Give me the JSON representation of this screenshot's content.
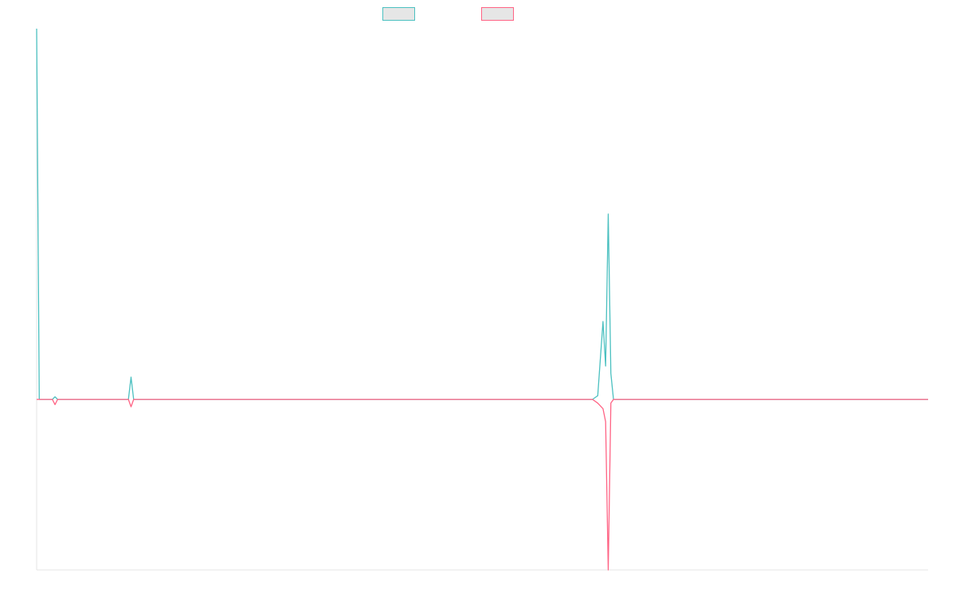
{
  "chart_data": {
    "type": "line",
    "title": "",
    "xlabel": "",
    "ylabel": "",
    "grid": false,
    "legend_position": "top-center",
    "x": [
      0,
      0.3,
      0.6,
      0.9,
      1.2,
      1.5,
      1.8,
      2.1,
      2.4,
      2.7,
      3.0,
      10.5,
      10.8,
      11.1,
      11.4,
      11.7,
      63.6,
      64.2,
      64.8,
      65.1,
      65.4,
      65.7,
      66.0,
      66.6,
      67.5,
      102
    ],
    "ylim": [
      -0.46,
      1.0
    ],
    "series": [
      {
        "name": "",
        "color": "#4bc0c0",
        "values": [
          1.0,
          0,
          0,
          0,
          0,
          0,
          0,
          0.007,
          0,
          0,
          0,
          0,
          0.06,
          0,
          0,
          0,
          0,
          0.01,
          0.21,
          0.09,
          0.5,
          0.07,
          0,
          0,
          0,
          0
        ]
      },
      {
        "name": "",
        "color": "#ff6384",
        "values": [
          0,
          0,
          0,
          0,
          0,
          0,
          0,
          -0.014,
          0,
          0,
          0,
          0,
          -0.02,
          0,
          0,
          0,
          0,
          -0.01,
          -0.025,
          -0.06,
          -0.46,
          -0.01,
          0,
          0,
          0,
          0
        ]
      }
    ]
  }
}
